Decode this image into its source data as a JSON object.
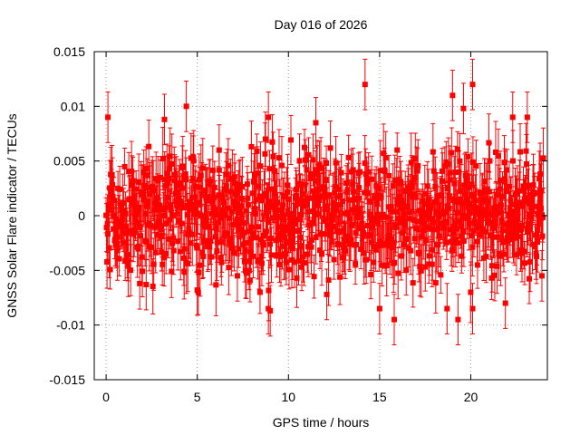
{
  "chart_data": {
    "type": "scatter",
    "title": "Day 016 of 2026",
    "xlabel": "GPS time / hours",
    "ylabel": "GNSS Solar Flare indicator / TECUs",
    "xlim": [
      -0.65,
      24.2
    ],
    "ylim": [
      -0.015,
      0.015
    ],
    "xticks": [
      0,
      5,
      10,
      15,
      20
    ],
    "yticks": [
      -0.015,
      -0.01,
      -0.005,
      0,
      0.005,
      0.01,
      0.015
    ],
    "ytick_labels": [
      "-0.015",
      "-0.01",
      "-0.005",
      "0",
      "0.005",
      "0.01",
      "0.015"
    ],
    "grid": true,
    "legend": "none",
    "series": [
      {
        "color": "#ff0000",
        "marker": "square",
        "error_bars": true,
        "sample_interval_hours": 0.0083,
        "typical_error": 0.0022,
        "x_range": [
          0,
          24
        ],
        "value_band": [
          -0.005,
          0.005
        ],
        "highlighted_points": [
          {
            "x": 0.1,
            "y": 0.009
          },
          {
            "x": 4.4,
            "y": 0.01
          },
          {
            "x": 3.2,
            "y": 0.0088
          },
          {
            "x": 8.9,
            "y": 0.009
          },
          {
            "x": 14.2,
            "y": 0.012
          },
          {
            "x": 20.1,
            "y": 0.012
          },
          {
            "x": 19.0,
            "y": 0.011
          },
          {
            "x": 19.6,
            "y": 0.0098
          },
          {
            "x": 22.3,
            "y": 0.009
          },
          {
            "x": 23.1,
            "y": 0.009
          },
          {
            "x": 8.9,
            "y": -0.0085
          },
          {
            "x": 9.0,
            "y": -0.0087
          },
          {
            "x": 15.0,
            "y": -0.0085
          },
          {
            "x": 15.8,
            "y": -0.0095
          },
          {
            "x": 19.3,
            "y": -0.0095
          },
          {
            "x": 18.7,
            "y": -0.0085
          },
          {
            "x": 20.1,
            "y": -0.0085
          },
          {
            "x": 21.9,
            "y": -0.008
          },
          {
            "x": 2.2,
            "y": -0.0063
          },
          {
            "x": 5.0,
            "y": -0.0068
          },
          {
            "x": 7.2,
            "y": -0.0055
          },
          {
            "x": 12.1,
            "y": -0.0072
          },
          {
            "x": 23.9,
            "y": -0.0055
          },
          {
            "x": 6.2,
            "y": 0.006
          },
          {
            "x": 11.5,
            "y": 0.0085
          }
        ]
      }
    ]
  }
}
